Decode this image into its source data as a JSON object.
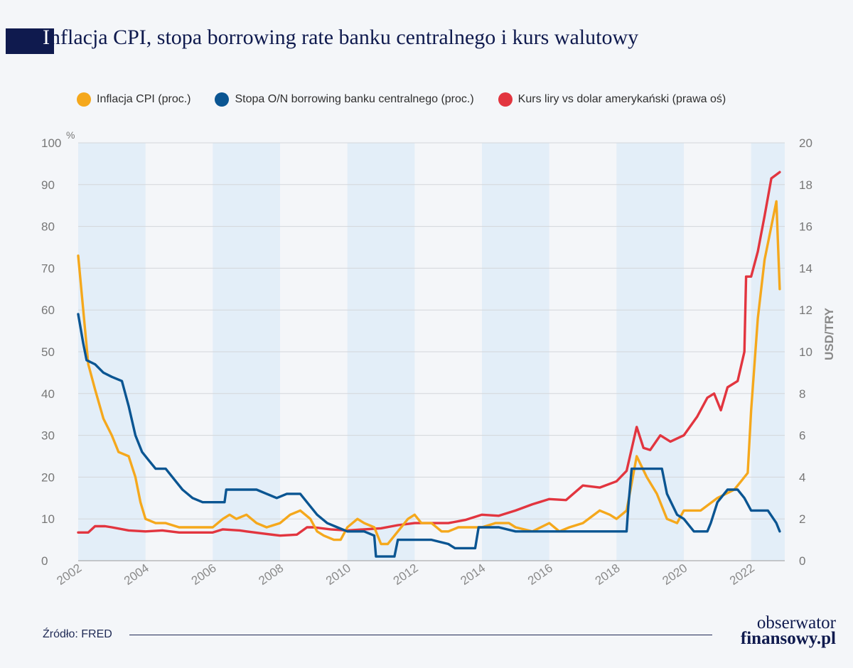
{
  "header": {
    "title_initial": "I",
    "title_rest": "nflacja CPI, stopa borrowing rate banku centralnego i kurs walutowy"
  },
  "legend": {
    "items": [
      {
        "label": "Inflacja CPI (proc.)",
        "color": "#f5a81c"
      },
      {
        "label": "Stopa O/N borrowing banku centralnego (proc.)",
        "color": "#0a5592"
      },
      {
        "label": "Kurs liry vs dolar amerykański (prawa oś)",
        "color": "#e2353f"
      }
    ]
  },
  "footer": {
    "source": "Źródło: FRED",
    "logo_line1": "obserwator",
    "logo_line2": "finansowy.pl"
  },
  "chart_data": {
    "type": "line",
    "title": "Inflacja CPI, stopa borrowing rate banku centralnego i kurs walutowy",
    "left_axis": {
      "unit": "%",
      "range": [
        0,
        100
      ],
      "ticks": [
        "0",
        "10",
        "20",
        "30",
        "40",
        "50",
        "60",
        "70",
        "80",
        "90",
        "100"
      ]
    },
    "right_axis": {
      "label": "USD/TRY",
      "range": [
        0,
        20
      ],
      "ticks": [
        "0",
        "2",
        "4",
        "6",
        "8",
        "10",
        "12",
        "14",
        "16",
        "18",
        "20"
      ]
    },
    "x_ticks": [
      "2002",
      "2004",
      "2006",
      "2008",
      "2010",
      "2012",
      "2014",
      "2016",
      "2018",
      "2020",
      "2022"
    ],
    "x_range": [
      2002.0,
      2022.85
    ],
    "shaded_bands": [
      [
        2002,
        2004
      ],
      [
        2006,
        2008
      ],
      [
        2010,
        2012
      ],
      [
        2014,
        2016
      ],
      [
        2018,
        2020
      ],
      [
        2022,
        2023
      ]
    ],
    "grid": true,
    "legend_position": "top",
    "series": [
      {
        "name": "Inflacja CPI (proc.)",
        "axis": "left",
        "color": "#f5a81c",
        "points": [
          [
            2002.0,
            73
          ],
          [
            2002.15,
            60
          ],
          [
            2002.3,
            47
          ],
          [
            2002.5,
            41
          ],
          [
            2002.75,
            34
          ],
          [
            2003.0,
            30
          ],
          [
            2003.2,
            26
          ],
          [
            2003.5,
            25
          ],
          [
            2003.7,
            20
          ],
          [
            2003.85,
            14
          ],
          [
            2004.0,
            10
          ],
          [
            2004.3,
            9
          ],
          [
            2004.6,
            9
          ],
          [
            2005.0,
            8
          ],
          [
            2005.5,
            8
          ],
          [
            2006.0,
            8
          ],
          [
            2006.3,
            10
          ],
          [
            2006.5,
            11
          ],
          [
            2006.7,
            10
          ],
          [
            2007.0,
            11
          ],
          [
            2007.3,
            9
          ],
          [
            2007.6,
            8
          ],
          [
            2008.0,
            9
          ],
          [
            2008.3,
            11
          ],
          [
            2008.6,
            12
          ],
          [
            2008.9,
            10
          ],
          [
            2009.1,
            7
          ],
          [
            2009.3,
            6
          ],
          [
            2009.6,
            5
          ],
          [
            2009.8,
            5
          ],
          [
            2010.0,
            8
          ],
          [
            2010.3,
            10
          ],
          [
            2010.5,
            9
          ],
          [
            2010.8,
            8
          ],
          [
            2011.0,
            4
          ],
          [
            2011.2,
            4
          ],
          [
            2011.5,
            7
          ],
          [
            2011.8,
            10
          ],
          [
            2012.0,
            11
          ],
          [
            2012.2,
            9
          ],
          [
            2012.5,
            9
          ],
          [
            2012.8,
            7
          ],
          [
            2013.0,
            7
          ],
          [
            2013.3,
            8
          ],
          [
            2013.6,
            8
          ],
          [
            2014.0,
            8
          ],
          [
            2014.4,
            9
          ],
          [
            2014.8,
            9
          ],
          [
            2015.0,
            8
          ],
          [
            2015.5,
            7
          ],
          [
            2016.0,
            9
          ],
          [
            2016.3,
            7
          ],
          [
            2016.6,
            8
          ],
          [
            2017.0,
            9
          ],
          [
            2017.5,
            12
          ],
          [
            2017.8,
            11
          ],
          [
            2018.0,
            10
          ],
          [
            2018.3,
            12
          ],
          [
            2018.6,
            25
          ],
          [
            2018.9,
            20
          ],
          [
            2019.2,
            16
          ],
          [
            2019.5,
            10
          ],
          [
            2019.8,
            9
          ],
          [
            2020.0,
            12
          ],
          [
            2020.5,
            12
          ],
          [
            2021.0,
            15
          ],
          [
            2021.5,
            17
          ],
          [
            2021.7,
            19
          ],
          [
            2021.9,
            21
          ],
          [
            2022.0,
            36
          ],
          [
            2022.2,
            58
          ],
          [
            2022.4,
            72
          ],
          [
            2022.6,
            80
          ],
          [
            2022.75,
            86
          ],
          [
            2022.85,
            65
          ]
        ]
      },
      {
        "name": "Stopa O/N borrowing banku centralnego (proc.)",
        "axis": "left",
        "color": "#0a5592",
        "points": [
          [
            2002.0,
            59
          ],
          [
            2002.15,
            52
          ],
          [
            2002.25,
            48
          ],
          [
            2002.5,
            47
          ],
          [
            2002.75,
            45
          ],
          [
            2003.0,
            44
          ],
          [
            2003.3,
            43
          ],
          [
            2003.5,
            37
          ],
          [
            2003.7,
            30
          ],
          [
            2003.9,
            26
          ],
          [
            2004.1,
            24
          ],
          [
            2004.3,
            22
          ],
          [
            2004.6,
            22
          ],
          [
            2004.9,
            19
          ],
          [
            2005.1,
            17
          ],
          [
            2005.4,
            15
          ],
          [
            2005.7,
            14
          ],
          [
            2006.0,
            14
          ],
          [
            2006.35,
            14
          ],
          [
            2006.4,
            17
          ],
          [
            2007.0,
            17
          ],
          [
            2007.3,
            17
          ],
          [
            2007.6,
            16
          ],
          [
            2007.9,
            15
          ],
          [
            2008.2,
            16
          ],
          [
            2008.6,
            16
          ],
          [
            2008.9,
            13
          ],
          [
            2009.1,
            11
          ],
          [
            2009.4,
            9
          ],
          [
            2009.7,
            8
          ],
          [
            2010.0,
            7
          ],
          [
            2010.5,
            7
          ],
          [
            2010.8,
            6
          ],
          [
            2010.85,
            1
          ],
          [
            2011.4,
            1
          ],
          [
            2011.5,
            5
          ],
          [
            2012.0,
            5
          ],
          [
            2012.5,
            5
          ],
          [
            2013.0,
            4
          ],
          [
            2013.2,
            3
          ],
          [
            2013.8,
            3
          ],
          [
            2013.9,
            8
          ],
          [
            2014.5,
            8
          ],
          [
            2015.0,
            7
          ],
          [
            2016.0,
            7
          ],
          [
            2017.0,
            7
          ],
          [
            2018.0,
            7
          ],
          [
            2018.3,
            7
          ],
          [
            2018.35,
            13
          ],
          [
            2018.45,
            22
          ],
          [
            2019.0,
            22
          ],
          [
            2019.35,
            22
          ],
          [
            2019.5,
            16
          ],
          [
            2019.8,
            11
          ],
          [
            2020.0,
            10
          ],
          [
            2020.3,
            7
          ],
          [
            2020.7,
            7
          ],
          [
            2020.8,
            9
          ],
          [
            2021.0,
            14
          ],
          [
            2021.3,
            17
          ],
          [
            2021.6,
            17
          ],
          [
            2021.8,
            15
          ],
          [
            2022.0,
            12
          ],
          [
            2022.5,
            12
          ],
          [
            2022.75,
            9
          ],
          [
            2022.85,
            7
          ]
        ]
      },
      {
        "name": "Kurs liry vs dolar amerykański (prawa oś)",
        "axis": "right",
        "color": "#e2353f",
        "points": [
          [
            2002.0,
            1.35
          ],
          [
            2002.3,
            1.35
          ],
          [
            2002.5,
            1.65
          ],
          [
            2002.8,
            1.65
          ],
          [
            2003.0,
            1.6
          ],
          [
            2003.5,
            1.45
          ],
          [
            2004.0,
            1.4
          ],
          [
            2004.5,
            1.45
          ],
          [
            2005.0,
            1.35
          ],
          [
            2005.5,
            1.35
          ],
          [
            2006.0,
            1.35
          ],
          [
            2006.3,
            1.5
          ],
          [
            2006.8,
            1.45
          ],
          [
            2007.0,
            1.4
          ],
          [
            2007.5,
            1.3
          ],
          [
            2008.0,
            1.2
          ],
          [
            2008.5,
            1.25
          ],
          [
            2008.8,
            1.6
          ],
          [
            2009.0,
            1.6
          ],
          [
            2009.5,
            1.5
          ],
          [
            2010.0,
            1.45
          ],
          [
            2010.5,
            1.5
          ],
          [
            2011.0,
            1.55
          ],
          [
            2011.5,
            1.7
          ],
          [
            2012.0,
            1.8
          ],
          [
            2012.5,
            1.8
          ],
          [
            2013.0,
            1.8
          ],
          [
            2013.5,
            1.95
          ],
          [
            2014.0,
            2.2
          ],
          [
            2014.5,
            2.15
          ],
          [
            2015.0,
            2.4
          ],
          [
            2015.5,
            2.7
          ],
          [
            2016.0,
            2.95
          ],
          [
            2016.5,
            2.9
          ],
          [
            2017.0,
            3.6
          ],
          [
            2017.5,
            3.5
          ],
          [
            2018.0,
            3.8
          ],
          [
            2018.3,
            4.3
          ],
          [
            2018.6,
            6.4
          ],
          [
            2018.8,
            5.4
          ],
          [
            2019.0,
            5.3
          ],
          [
            2019.3,
            6.0
          ],
          [
            2019.6,
            5.7
          ],
          [
            2020.0,
            6.0
          ],
          [
            2020.4,
            6.9
          ],
          [
            2020.7,
            7.8
          ],
          [
            2020.9,
            8.0
          ],
          [
            2021.1,
            7.2
          ],
          [
            2021.3,
            8.3
          ],
          [
            2021.6,
            8.6
          ],
          [
            2021.8,
            10.0
          ],
          [
            2021.85,
            13.6
          ],
          [
            2022.0,
            13.6
          ],
          [
            2022.2,
            14.8
          ],
          [
            2022.4,
            16.5
          ],
          [
            2022.6,
            18.3
          ],
          [
            2022.85,
            18.6
          ]
        ]
      }
    ]
  }
}
